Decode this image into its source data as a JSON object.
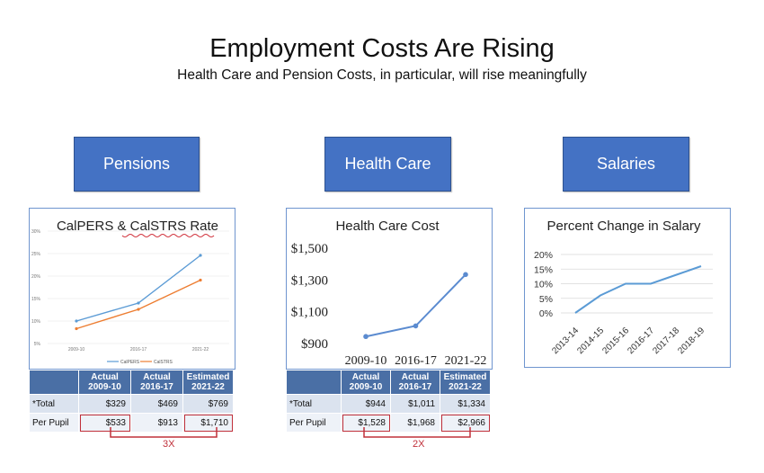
{
  "title": "Employment Costs Are Rising",
  "subtitle": "Health Care and Pension Costs, in particular, will rise meaningfully",
  "boxes": {
    "pensions": "Pensions",
    "health_care": "Health Care",
    "salaries": "Salaries"
  },
  "colors": {
    "box_blue": "#4472c4",
    "calpers_line": "#5b9bd5",
    "calstrs_line": "#ed7d31",
    "highlight_red": "#c0303a"
  },
  "chart_data": [
    {
      "type": "line",
      "title": "CalPERS & CalSTRS Rate",
      "categories": [
        "2009-10",
        "2016-17",
        "2021-22"
      ],
      "y_ticks": [
        "5%",
        "10%",
        "15%",
        "20%",
        "25%",
        "30%"
      ],
      "ylim": [
        5,
        30
      ],
      "series": [
        {
          "name": "CalPERS",
          "values": [
            10,
            14,
            24.6
          ]
        },
        {
          "name": "CalSTRS",
          "values": [
            8.3,
            12.6,
            19.1
          ]
        }
      ],
      "legend": "bottom"
    },
    {
      "type": "line",
      "title": "Health Care Cost",
      "categories": [
        "2009-10",
        "2016-17",
        "2021-22"
      ],
      "y_ticks": [
        "$900",
        "$1,100",
        "$1,300",
        "$1,500"
      ],
      "ylim": [
        900,
        1500
      ],
      "series": [
        {
          "values": [
            944,
            1011,
            1334
          ]
        }
      ]
    },
    {
      "type": "line",
      "title": "Percent Change in Salary",
      "categories": [
        "2013-14",
        "2014-15",
        "2015-16",
        "2016-17",
        "2017-18",
        "2018-19"
      ],
      "y_ticks": [
        "0%",
        "5%",
        "10%",
        "15%",
        "20%"
      ],
      "ylim": [
        0,
        20
      ],
      "series": [
        {
          "values": [
            0,
            6,
            10,
            10,
            13,
            16
          ]
        }
      ]
    }
  ],
  "tables": {
    "pensions": {
      "headers": [
        "",
        "Actual\n2009-10",
        "Actual\n2016-17",
        "Estimated\n2021-22"
      ],
      "rows": [
        [
          "*Total",
          "$329",
          "$469",
          "$769"
        ],
        [
          "Per Pupil",
          "$533",
          "$913",
          "$1,710"
        ]
      ],
      "multiplier": "3X"
    },
    "health_care": {
      "headers": [
        "",
        "Actual\n2009-10",
        "Actual\n2016-17",
        "Estimated\n2021-22"
      ],
      "rows": [
        [
          "*Total",
          "$944",
          "$1,011",
          "$1,334"
        ],
        [
          "Per Pupil",
          "$1,528",
          "$1,968",
          "$2,966"
        ]
      ],
      "multiplier": "2X"
    }
  }
}
